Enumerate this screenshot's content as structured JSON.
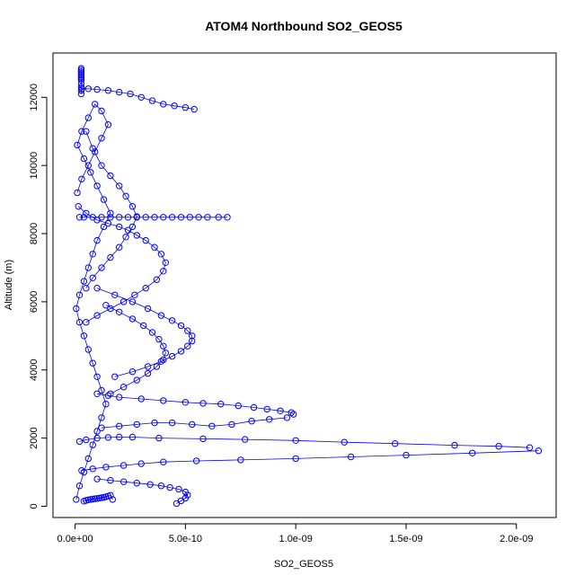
{
  "chart_data": {
    "type": "scatter",
    "title": "ATOM4 Northbound SO2_GEOS5",
    "xlabel": "SO2_GEOS5",
    "ylabel": "Altitude (m)",
    "xlim": [
      -1e-10,
      2.18e-09
    ],
    "ylim": [
      -330,
      13300
    ],
    "x_ticks": [
      0,
      5e-10,
      1e-09,
      1.5e-09,
      2e-09
    ],
    "x_tick_labels": [
      "0.0e+00",
      "5.0e-10",
      "1.0e-09",
      "1.5e-09",
      "2.0e-09"
    ],
    "y_ticks": [
      0,
      2000,
      4000,
      6000,
      8000,
      10000,
      12000
    ],
    "y_tick_labels": [
      "0",
      "2000",
      "4000",
      "6000",
      "8000",
      "10000",
      "12000"
    ],
    "grid": false,
    "legend": "none",
    "marker": "open-circle",
    "color": "#0000ff",
    "series": [
      {
        "x": [
          2e-11,
          4e-11,
          8e-11,
          1.2e-10,
          1.6e-10,
          2e-10,
          2.4e-10,
          2.8e-10,
          3.2e-10,
          3.6e-10,
          4e-10,
          4.4e-10,
          4.8e-10,
          5.2e-10,
          5.6e-10,
          6e-10,
          6.5e-10,
          6.9e-10
        ],
        "y": [
          8480,
          8480,
          8480,
          8480,
          8480,
          8480,
          8480,
          8480,
          8480,
          8480,
          8480,
          8480,
          8480,
          8480,
          8480,
          8480,
          8480,
          8480
        ]
      },
      {
        "x": [
          3e-11,
          6e-11,
          1e-10,
          1.5e-10,
          2e-10,
          2.5e-10,
          3e-10,
          3.5e-10,
          4e-10,
          4.5e-10,
          5e-10,
          5.4e-10
        ],
        "y": [
          12250,
          12250,
          12230,
          12200,
          12150,
          12100,
          12000,
          11900,
          11800,
          11750,
          11700,
          11650
        ]
      },
      {
        "x": [
          1.5e-11,
          5e-11,
          1e-10,
          1.5e-10,
          2e-10,
          2.4e-10,
          2.8e-10,
          3.2e-10,
          3.6e-10,
          3.9e-10,
          4.1e-10,
          4e-10,
          3.7e-10,
          3.2e-10,
          2.7e-10,
          2.2e-10,
          1.6e-10,
          1e-10,
          5e-11
        ],
        "y": [
          8800,
          8600,
          8400,
          8300,
          8200,
          8100,
          7950,
          7800,
          7600,
          7400,
          7150,
          6900,
          6650,
          6400,
          6200,
          6000,
          5800,
          5600,
          5400
        ]
      },
      {
        "x": [
          1e-10,
          1.8e-10,
          2.6e-10,
          3.3e-10,
          3.9e-10,
          4.4e-10,
          4.8e-10,
          5.1e-10,
          5.3e-10,
          5.3e-10,
          5.1e-10,
          4.8e-10,
          4.4e-10,
          3.9e-10,
          3.3e-10,
          2.6e-10,
          1.8e-10
        ],
        "y": [
          6400,
          6200,
          6000,
          5800,
          5600,
          5450,
          5300,
          5150,
          5000,
          4850,
          4700,
          4550,
          4400,
          4250,
          4100,
          3950,
          3800
        ]
      },
      {
        "x": [
          1.4e-10,
          2e-10,
          2.6e-10,
          3.1e-10,
          3.5e-10,
          3.8e-10,
          4e-10,
          4.1e-10,
          4e-10,
          3.7e-10,
          3.3e-10,
          2.8e-10,
          2.2e-10,
          1.6e-10
        ],
        "y": [
          5900,
          5700,
          5500,
          5300,
          5100,
          4900,
          4700,
          4500,
          4300,
          4100,
          3900,
          3700,
          3500,
          3300
        ]
      },
      {
        "x": [
          1e-10,
          1.5e-10,
          2e-10,
          3e-10,
          4e-10,
          5e-10,
          5.8e-10,
          6.6e-10,
          7.4e-10,
          8.1e-10,
          8.7e-10,
          9.3e-10,
          9.8e-10,
          9.9e-10
        ],
        "y": [
          3300,
          3250,
          3200,
          3150,
          3100,
          3050,
          3020,
          3000,
          2950,
          2900,
          2850,
          2800,
          2750,
          2700
        ]
      },
      {
        "x": [
          1.2e-10,
          2e-10,
          2.8e-10,
          3.6e-10,
          4.4e-10,
          5.3e-10,
          6.2e-10,
          7.1e-10,
          8e-10,
          8.8e-10,
          9.6e-10
        ],
        "y": [
          2300,
          2350,
          2400,
          2450,
          2450,
          2400,
          2350,
          2400,
          2500,
          2550,
          2600
        ]
      },
      {
        "x": [
          2e-11,
          5e-11,
          1e-10,
          1.5e-10,
          2e-10,
          2.6e-10,
          3.8e-10,
          5.8e-10,
          7.7e-10,
          1e-09,
          1.22e-09,
          1.45e-09,
          1.72e-09,
          1.92e-09,
          2.06e-09
        ],
        "y": [
          1900,
          1950,
          2000,
          2020,
          2030,
          2030,
          2000,
          1980,
          1960,
          1930,
          1880,
          1840,
          1790,
          1760,
          1720
        ]
      },
      {
        "x": [
          3e-11,
          8e-11,
          1.4e-10,
          2.2e-10,
          3e-10,
          4e-10,
          5.5e-10,
          7.5e-10,
          1e-09,
          1.25e-09,
          1.5e-09,
          1.8e-09,
          2.1e-09
        ],
        "y": [
          1050,
          1100,
          1150,
          1200,
          1250,
          1300,
          1330,
          1360,
          1400,
          1450,
          1500,
          1560,
          1630
        ]
      },
      {
        "x": [
          1e-10,
          1.6e-10,
          2.2e-10,
          2.8e-10,
          3.4e-10,
          3.9e-10,
          4.3e-10,
          4.7e-10,
          5e-10,
          5.1e-10,
          5e-10,
          4.8e-10,
          4.6e-10
        ],
        "y": [
          800,
          760,
          720,
          680,
          640,
          600,
          550,
          500,
          420,
          330,
          240,
          160,
          80
        ]
      },
      {
        "x": [
          4e-11,
          5e-11,
          6e-11,
          7e-11,
          8e-11,
          9e-11,
          1e-10,
          1.1e-10,
          1.2e-10,
          1.3e-10,
          1.4e-10,
          1.5e-10,
          1.6e-10,
          1.7e-10
        ],
        "y": [
          150,
          170,
          190,
          200,
          210,
          220,
          230,
          240,
          250,
          260,
          280,
          300,
          320,
          200
        ]
      },
      {
        "x": [
          2.8e-11,
          2.8e-11,
          2.8e-11,
          2.8e-11,
          2.8e-11,
          2.8e-11,
          2.8e-11,
          2.8e-11,
          2.8e-11,
          2.8e-11,
          2.8e-11,
          2.8e-11
        ],
        "y": [
          12100,
          12200,
          12300,
          12400,
          12500,
          12550,
          12600,
          12650,
          12700,
          12750,
          12800,
          12850
        ]
      },
      {
        "x": [
          5e-12,
          2e-11,
          4e-11,
          6e-11,
          8e-11,
          1e-10,
          1.2e-10,
          1.4e-10,
          1.2e-10,
          1e-10,
          8e-11,
          6e-11,
          4e-11,
          2e-11,
          5e-12,
          2e-11,
          4e-11,
          6e-11,
          8e-11,
          1e-10,
          1.3e-10,
          1.6e-10,
          1.3e-10,
          1e-10,
          7e-11,
          4e-11,
          1e-11,
          3e-11,
          6e-11,
          9e-11,
          1.2e-10,
          1.5e-10,
          1.2e-10,
          9e-11,
          6e-11,
          3e-11,
          1e-11
        ],
        "y": [
          200,
          600,
          1000,
          1400,
          1800,
          2200,
          2600,
          3000,
          3400,
          3800,
          4200,
          4600,
          5000,
          5400,
          5800,
          6200,
          6600,
          7000,
          7400,
          7800,
          8200,
          8600,
          9000,
          9400,
          9800,
          10200,
          10600,
          11000,
          11400,
          11800,
          11600,
          11200,
          10800,
          10400,
          10000,
          9600,
          9200
        ]
      },
      {
        "x": [
          5e-11,
          8e-11,
          1.2e-10,
          1.6e-10,
          2e-10,
          2.3e-10,
          2.6e-10,
          2.8e-10,
          2.6e-10,
          2.3e-10,
          2e-10,
          1.6e-10,
          1.2e-10,
          8e-11,
          5e-11
        ],
        "y": [
          11000,
          10500,
          10000,
          9700,
          9400,
          9100,
          8800,
          8500,
          8200,
          7900,
          7600,
          7300,
          7000,
          6700,
          6400
        ]
      }
    ]
  }
}
